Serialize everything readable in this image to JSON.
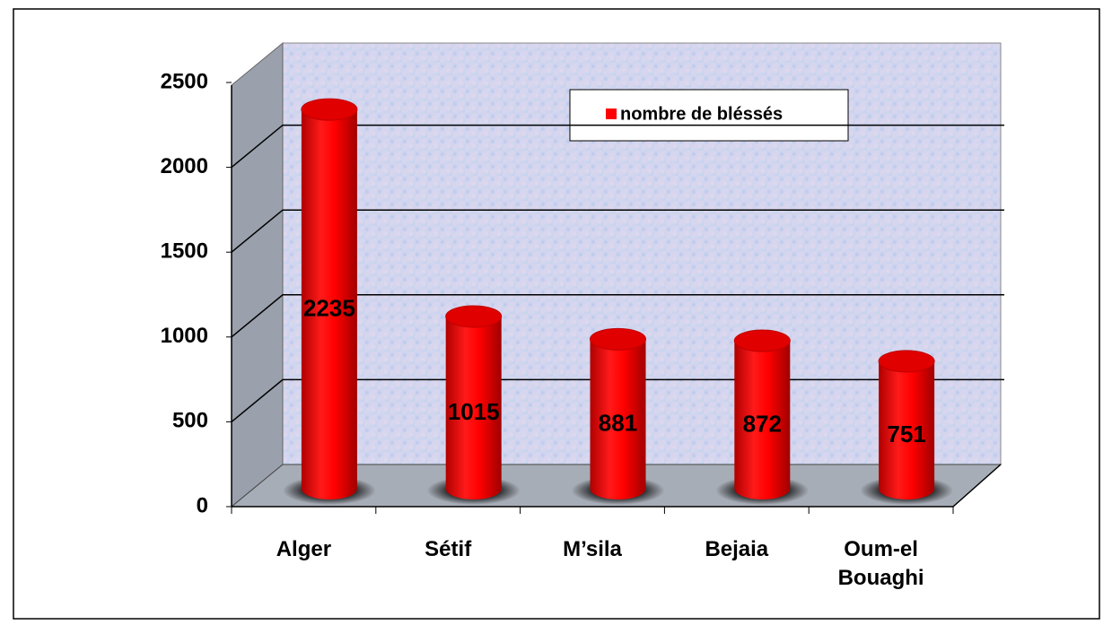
{
  "chart_data": {
    "type": "bar",
    "categories": [
      "Alger",
      "Sétif",
      "M’sila",
      "Bejaia",
      "Oum-el Bouaghi"
    ],
    "series": [
      {
        "name": "nombre de bléssés",
        "color": "#ff0000",
        "values": [
          2235,
          1015,
          881,
          872,
          751
        ]
      }
    ],
    "ylim": [
      0,
      2500
    ],
    "yticks": [
      0,
      500,
      1000,
      1500,
      2000,
      2500
    ],
    "grid": true,
    "legend": "top-right"
  }
}
